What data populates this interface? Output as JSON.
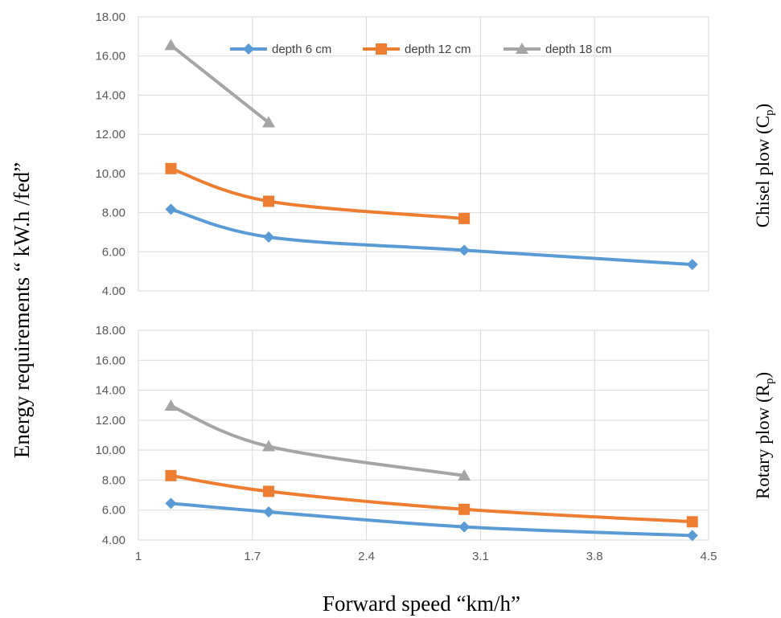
{
  "chart_data": [
    {
      "type": "line",
      "side_label": "Chisel plow (C",
      "side_label_sub": "p",
      "side_label_close": ")",
      "x_ticks": [
        "1",
        "1.7",
        "2.4",
        "3.1",
        "3.8",
        "4.5"
      ],
      "xlim": [
        1,
        4.5
      ],
      "y_ticks": [
        "4.00",
        "6.00",
        "8.00",
        "10.00",
        "12.00",
        "14.00",
        "16.00",
        "18.00"
      ],
      "ylim": [
        4,
        18
      ],
      "grid": true,
      "legend_position": "top",
      "series": [
        {
          "name": "depth 6 cm",
          "color": "#5b9bd5",
          "marker": "diamond",
          "x": [
            1.2,
            1.8,
            3.0,
            4.4
          ],
          "y": [
            8.17,
            6.75,
            6.08,
            5.35
          ]
        },
        {
          "name": "depth 12 cm",
          "color": "#ed7d31",
          "marker": "square",
          "x": [
            1.2,
            1.8,
            3.0
          ],
          "y": [
            10.25,
            8.58,
            7.7
          ]
        },
        {
          "name": "depth 18 cm",
          "color": "#a5a5a5",
          "marker": "triangle",
          "x": [
            1.2,
            1.8
          ],
          "y": [
            16.55,
            12.6
          ]
        }
      ]
    },
    {
      "type": "line",
      "side_label": "Rotary plow (R",
      "side_label_sub": "p",
      "side_label_close": ")",
      "x_ticks": [
        "1",
        "1.7",
        "2.4",
        "3.1",
        "3.8",
        "4.5"
      ],
      "xlim": [
        1,
        4.5
      ],
      "y_ticks": [
        "4.00",
        "6.00",
        "8.00",
        "10.00",
        "12.00",
        "14.00",
        "16.00",
        "18.00"
      ],
      "ylim": [
        4,
        18
      ],
      "grid": true,
      "series": [
        {
          "name": "depth 6 cm",
          "color": "#5b9bd5",
          "marker": "diamond",
          "x": [
            1.2,
            1.8,
            3.0,
            4.4
          ],
          "y": [
            6.45,
            5.88,
            4.88,
            4.3
          ]
        },
        {
          "name": "depth 12 cm",
          "color": "#ed7d31",
          "marker": "square",
          "x": [
            1.2,
            1.8,
            3.0,
            4.4
          ],
          "y": [
            8.3,
            7.25,
            6.05,
            5.22
          ]
        },
        {
          "name": "depth 18 cm",
          "color": "#a5a5a5",
          "marker": "triangle",
          "x": [
            1.2,
            1.8,
            3.0
          ],
          "y": [
            12.95,
            10.25,
            8.3
          ]
        }
      ]
    }
  ],
  "ylabel": "Energy requirements “  kW.h /fed”",
  "xlabel": "Forward speed “km/h”"
}
